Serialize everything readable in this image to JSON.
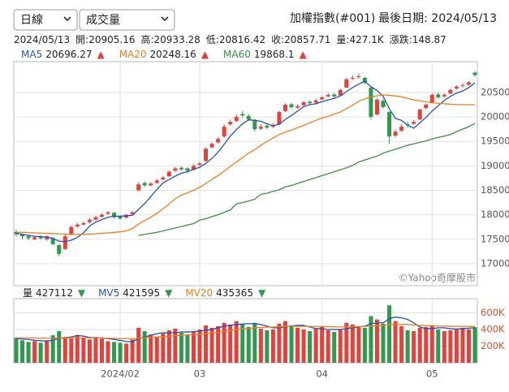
{
  "controls": {
    "period": "日線",
    "indicator": "成交量"
  },
  "header": {
    "title": "加權指數(#001)",
    "last_date": "最後日期: 2024/05/13"
  },
  "chart_data": [
    {
      "type": "candlestick",
      "quote": {
        "date": "2024/05/13",
        "labels": {
          "open": "開:",
          "high": "高:",
          "low": "低:",
          "close": "收:"
        },
        "volume_label": "量:",
        "volume_text": "427.1K",
        "change_label": "漲跌:",
        "change": 148.87
      },
      "up_color": "#e3413b",
      "down_color": "#2f9a4e",
      "open": [
        17650,
        17600,
        17560,
        17500,
        17560,
        17500,
        17520,
        17380,
        17300,
        17600,
        17760,
        17800,
        17850,
        17900,
        17960,
        18020,
        18040,
        17960,
        17940,
        18010,
        18500,
        18650,
        18600,
        18650,
        18720,
        18790,
        18900,
        18960,
        18950,
        18920,
        19020,
        19100,
        19380,
        19480,
        19600,
        19850,
        19920,
        20060,
        20020,
        19940,
        19760,
        19820,
        19800,
        19850,
        20120,
        20260,
        20190,
        20240,
        20310,
        20290,
        20360,
        20420,
        20460,
        20440,
        20600,
        20780,
        20820,
        20800,
        20600,
        20050,
        20330,
        20100,
        19620,
        19720,
        19850,
        19860,
        19950,
        20180,
        20300,
        20460,
        20420,
        20480,
        20580,
        20640,
        20660,
        20905.16
      ],
      "high": [
        17700,
        17620,
        17580,
        17570,
        17590,
        17580,
        17540,
        17400,
        17600,
        17780,
        17830,
        17860,
        17930,
        17980,
        18030,
        18080,
        18060,
        17990,
        18020,
        18080,
        18660,
        18680,
        18670,
        18730,
        18790,
        18900,
        18980,
        18990,
        18970,
        19030,
        19080,
        19380,
        19480,
        19580,
        19850,
        19950,
        20050,
        20120,
        20060,
        19960,
        19850,
        19860,
        19880,
        20130,
        20280,
        20290,
        20260,
        20330,
        20340,
        20370,
        20430,
        20490,
        20490,
        20580,
        20800,
        20850,
        20880,
        20820,
        20620,
        20380,
        20360,
        20120,
        19750,
        19850,
        19900,
        19940,
        20170,
        20280,
        20480,
        20500,
        20480,
        20580,
        20650,
        20690,
        20730,
        20933.28
      ],
      "low": [
        17550,
        17500,
        17480,
        17480,
        17490,
        17470,
        17380,
        17150,
        17280,
        17580,
        17730,
        17780,
        17820,
        17880,
        17940,
        18000,
        17920,
        17900,
        17920,
        17990,
        18480,
        18570,
        18580,
        18630,
        18700,
        18770,
        18880,
        18900,
        18860,
        18900,
        18990,
        19080,
        19350,
        19460,
        19580,
        19820,
        19900,
        19990,
        19920,
        19700,
        19730,
        19750,
        19770,
        19840,
        20100,
        20170,
        20170,
        20220,
        20250,
        20270,
        20340,
        20400,
        20390,
        20420,
        20590,
        20760,
        20780,
        20670,
        19950,
        20030,
        20180,
        19450,
        19580,
        19690,
        19780,
        19840,
        19930,
        20160,
        20280,
        20370,
        20400,
        20460,
        20560,
        20600,
        20640,
        20816.42
      ],
      "close": [
        17600,
        17560,
        17520,
        17540,
        17520,
        17560,
        17400,
        17200,
        17560,
        17750,
        17800,
        17830,
        17900,
        17950,
        18000,
        18050,
        17950,
        17920,
        18000,
        18050,
        18620,
        18600,
        18640,
        18700,
        18760,
        18880,
        18950,
        18930,
        18900,
        19000,
        19050,
        19350,
        19450,
        19550,
        19800,
        19900,
        20000,
        20030,
        19950,
        19750,
        19800,
        19780,
        19830,
        20100,
        20250,
        20200,
        20220,
        20300,
        20280,
        20340,
        20400,
        20450,
        20420,
        20550,
        20770,
        20800,
        20830,
        20700,
        20000,
        20350,
        20200,
        19600,
        19700,
        19800,
        19830,
        19900,
        20150,
        20250,
        20450,
        20400,
        20450,
        20550,
        20620,
        20650,
        20709,
        20857.71
      ],
      "series": [
        {
          "name": "MA5",
          "color": "#2554b8",
          "trend": "▲",
          "trend_color": "#e3413b",
          "values": [
            17620,
            17600,
            17580,
            17560,
            17550,
            17540,
            17520,
            17460,
            17450,
            17480,
            17540,
            17630,
            17770,
            17850,
            17900,
            17950,
            17970,
            17970,
            17980,
            17990,
            18110,
            18230,
            18370,
            18520,
            18650,
            18720,
            18790,
            18850,
            18880,
            18930,
            18970,
            19050,
            19150,
            19280,
            19440,
            19610,
            19740,
            19860,
            19940,
            19930,
            19910,
            19860,
            19820,
            19850,
            19950,
            20030,
            20120,
            20210,
            20250,
            20270,
            20310,
            20350,
            20380,
            20430,
            20520,
            20600,
            20670,
            20730,
            20620,
            20540,
            20420,
            20170,
            19970,
            19930,
            19830,
            19770,
            19880,
            19990,
            20120,
            20230,
            20340,
            20420,
            20490,
            20530,
            20600,
            20696.27
          ]
        },
        {
          "name": "MA20",
          "color": "#ee7d1f",
          "trend": "▲",
          "trend_color": "#e3413b",
          "values": [
            17640,
            17640,
            17635,
            17630,
            17625,
            17620,
            17615,
            17610,
            17605,
            17600,
            17600,
            17600,
            17605,
            17610,
            17620,
            17630,
            17640,
            17650,
            17670,
            17720,
            17810,
            17880,
            17950,
            18030,
            18120,
            18220,
            18330,
            18400,
            18450,
            18500,
            18560,
            18640,
            18720,
            18800,
            18890,
            18990,
            19080,
            19170,
            19260,
            19330,
            19420,
            19500,
            19570,
            19640,
            19690,
            19730,
            19780,
            19830,
            19880,
            19930,
            19980,
            20010,
            20060,
            20100,
            20170,
            20240,
            20320,
            20370,
            20410,
            20430,
            20450,
            20440,
            20430,
            20410,
            20380,
            20350,
            20330,
            20310,
            20290,
            20280,
            20270,
            20260,
            20255,
            20250,
            20250,
            20248.16
          ]
        },
        {
          "name": "MA60",
          "color": "#3a9142",
          "trend": "▲",
          "trend_color": "#e3413b",
          "values": [
            null,
            null,
            null,
            null,
            null,
            null,
            null,
            null,
            null,
            null,
            null,
            null,
            null,
            null,
            null,
            null,
            null,
            null,
            null,
            null,
            17580,
            17600,
            17620,
            17640,
            17670,
            17700,
            17730,
            17760,
            17790,
            17820,
            17890,
            17920,
            17960,
            18000,
            18050,
            18100,
            18220,
            18250,
            18280,
            18320,
            18420,
            18440,
            18480,
            18510,
            18570,
            18600,
            18640,
            18680,
            18720,
            18760,
            18800,
            18840,
            18880,
            18920,
            18960,
            19010,
            19080,
            19120,
            19160,
            19200,
            19260,
            19300,
            19340,
            19380,
            19420,
            19450,
            19480,
            19510,
            19550,
            19580,
            19610,
            19640,
            19700,
            19750,
            19800,
            19868.1
          ]
        }
      ],
      "ylim": [
        16550,
        21130
      ],
      "yticks": [
        17000,
        17500,
        18000,
        18500,
        19000,
        19500,
        20000,
        20500
      ],
      "grid": true,
      "watermark": "©Yahoo奇摩股市"
    },
    {
      "type": "bar",
      "name": "量",
      "trend": "▼",
      "trend_color": "#2f9a4e",
      "categories": [
        null,
        null,
        null,
        null,
        null,
        null,
        null,
        null,
        null,
        null,
        null,
        null,
        null,
        null,
        null,
        null,
        null,
        "2024/02",
        null,
        null,
        null,
        null,
        null,
        null,
        null,
        null,
        null,
        null,
        null,
        null,
        "03",
        null,
        null,
        null,
        null,
        null,
        null,
        null,
        null,
        null,
        null,
        null,
        null,
        null,
        null,
        null,
        null,
        null,
        null,
        null,
        "04",
        null,
        null,
        null,
        null,
        null,
        null,
        null,
        null,
        null,
        null,
        null,
        null,
        null,
        null,
        null,
        null,
        null,
        "05",
        null,
        null,
        null,
        null,
        null,
        null,
        null
      ],
      "values": [
        300000,
        270000,
        250000,
        260000,
        240000,
        270000,
        330000,
        380000,
        310000,
        290000,
        330000,
        300000,
        280000,
        310000,
        290000,
        260000,
        250000,
        240000,
        230000,
        280000,
        420000,
        380000,
        340000,
        310000,
        350000,
        390000,
        410000,
        360000,
        340000,
        380000,
        400000,
        450000,
        420000,
        440000,
        480000,
        460000,
        500000,
        470000,
        430000,
        480000,
        410000,
        390000,
        400000,
        470000,
        500000,
        450000,
        420000,
        400000,
        380000,
        410000,
        430000,
        390000,
        370000,
        400000,
        480000,
        460000,
        440000,
        420000,
        560000,
        520000,
        470000,
        690000,
        500000,
        440000,
        390000,
        380000,
        420000,
        430000,
        450000,
        400000,
        380000,
        390000,
        410000,
        420000,
        400000,
        427112
      ],
      "series": [
        {
          "name": "MV5",
          "color": "#2554b8",
          "trend": "▼",
          "trend_color": "#2f9a4e",
          "values": [
            290000,
            285000,
            280000,
            270000,
            265000,
            260000,
            270000,
            295000,
            300000,
            310000,
            330000,
            320000,
            305000,
            300000,
            300000,
            290000,
            280000,
            270000,
            255000,
            255000,
            290000,
            310000,
            330000,
            350000,
            360000,
            360000,
            360000,
            370000,
            370000,
            375000,
            380000,
            390000,
            400000,
            420000,
            440000,
            450000,
            460000,
            465000,
            470000,
            470000,
            460000,
            440000,
            420000,
            420000,
            430000,
            440000,
            450000,
            450000,
            430000,
            410000,
            410000,
            400000,
            400000,
            400000,
            410000,
            420000,
            430000,
            440000,
            470000,
            480000,
            480000,
            530000,
            550000,
            540000,
            520000,
            480000,
            430000,
            410000,
            410000,
            420000,
            420000,
            410000,
            405000,
            410000,
            415000,
            421595
          ]
        },
        {
          "name": "MV20",
          "color": "#ee7d1f",
          "trend": "▼",
          "trend_color": "#2f9a4e",
          "values": [
            300000,
            300000,
            300000,
            298000,
            296000,
            295000,
            295000,
            297000,
            298000,
            298000,
            300000,
            300000,
            300000,
            300000,
            298000,
            296000,
            294000,
            292000,
            290000,
            290000,
            295000,
            300000,
            305000,
            310000,
            315000,
            320000,
            325000,
            330000,
            335000,
            340000,
            345000,
            350000,
            355000,
            365000,
            375000,
            385000,
            395000,
            405000,
            412000,
            420000,
            425000,
            428000,
            430000,
            432000,
            435000,
            437000,
            438000,
            438000,
            437000,
            436000,
            435000,
            434000,
            432000,
            430000,
            430000,
            432000,
            434000,
            436000,
            440000,
            445000,
            448000,
            455000,
            460000,
            462000,
            460000,
            455000,
            450000,
            446000,
            443000,
            441000,
            440000,
            439000,
            438000,
            437000,
            436000,
            435365
          ]
        }
      ],
      "ylim": [
        0,
        770000
      ],
      "yticks": [
        {
          "value": 200000,
          "label": "200K"
        },
        {
          "value": 400000,
          "label": "400K"
        },
        {
          "value": 600000,
          "label": "600K"
        }
      ],
      "grid": true
    }
  ]
}
